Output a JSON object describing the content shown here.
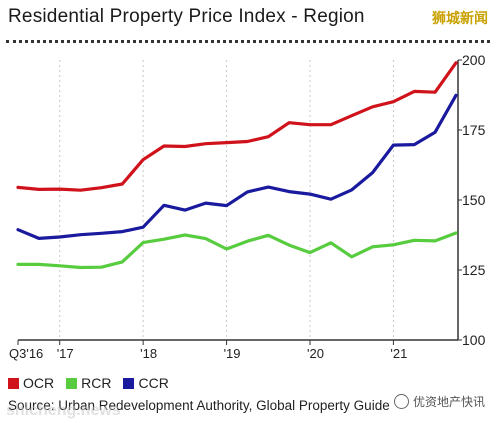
{
  "header": {
    "title": "Residential Property Price Index - Region",
    "logo_text": "狮城新闻"
  },
  "footer": {
    "source": "Source: Urban Redevelopment Authority, Global Property Guide",
    "watermark_url": "shicheng.news",
    "watermark_wechat": "优资地产快讯"
  },
  "colors": {
    "OCR": "#d0121b",
    "RCR": "#58cc3f",
    "CCR": "#1a1a9e"
  },
  "chart_data": {
    "type": "line",
    "title": "Residential Property Price Index - Region",
    "x_tick_labels": [
      {
        "label": "Q3'16",
        "q": 0
      },
      {
        "label": "'17",
        "q": 2
      },
      {
        "label": "'18",
        "q": 6
      },
      {
        "label": "'19",
        "q": 10
      },
      {
        "label": "'20",
        "q": 14
      },
      {
        "label": "'21",
        "q": 18
      }
    ],
    "ylim": [
      100,
      200
    ],
    "y_ticks": [
      100,
      125,
      150,
      175,
      200
    ],
    "grid": "vertical",
    "legend_position": "bottom-left",
    "series": [
      {
        "name": "OCR",
        "values": [
          154.5,
          153.8,
          153.9,
          153.5,
          154.4,
          155.7,
          164.4,
          169.3,
          169.1,
          170.1,
          170.5,
          170.9,
          172.6,
          177.6,
          176.9,
          176.9,
          180.1,
          183.3,
          185.1,
          188.8,
          188.5,
          199.0
        ]
      },
      {
        "name": "RCR",
        "values": [
          127.0,
          127.0,
          126.5,
          125.9,
          126.0,
          127.9,
          134.8,
          136.0,
          137.5,
          136.2,
          132.5,
          135.3,
          137.4,
          133.9,
          131.2,
          134.7,
          129.7,
          133.3,
          134.0,
          135.6,
          135.4,
          138.2
        ]
      },
      {
        "name": "CCR",
        "values": [
          139.4,
          136.3,
          136.8,
          137.6,
          138.1,
          138.7,
          140.3,
          148.1,
          146.4,
          148.9,
          148.0,
          152.9,
          154.6,
          153.0,
          152.1,
          150.3,
          153.6,
          159.8,
          169.6,
          169.8,
          174.2,
          187.4
        ]
      }
    ]
  }
}
